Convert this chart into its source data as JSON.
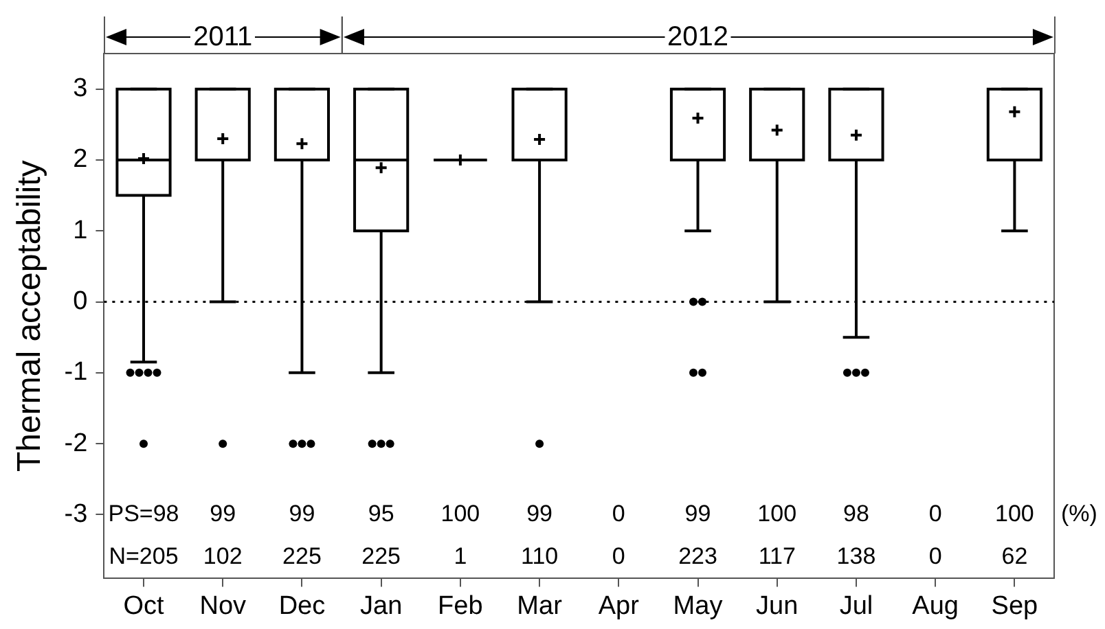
{
  "chart_data": {
    "type": "box",
    "ylabel": "Thermal acceptability",
    "color": "#000000",
    "grid": false,
    "categories": [
      "Oct",
      "Nov",
      "Dec",
      "Jan",
      "Feb",
      "Mar",
      "Apr",
      "May",
      "Jun",
      "Jul",
      "Aug",
      "Sep"
    ],
    "boxes": [
      {
        "low": -0.85,
        "q1": 1.5,
        "median": 2,
        "q3": 3,
        "high": 3,
        "mean": 2.02,
        "outliers": [
          -1,
          -1,
          -1,
          -1,
          -2
        ]
      },
      {
        "low": 0,
        "q1": 2,
        "median": 2,
        "q3": 3,
        "high": 3,
        "mean": 2.3,
        "outliers": [
          -2
        ]
      },
      {
        "low": -1,
        "q1": 2,
        "median": 2,
        "q3": 3,
        "high": 3,
        "mean": 2.23,
        "outliers": [
          -2,
          -2,
          -2
        ]
      },
      {
        "low": -1,
        "q1": 1,
        "median": 2,
        "q3": 3,
        "high": 3,
        "mean": 1.89,
        "outliers": [
          -2,
          -2,
          -2
        ]
      },
      {
        "low": 2,
        "q1": 2,
        "median": 2,
        "q3": 2,
        "high": 2,
        "mean": 2
      },
      {
        "low": 0,
        "q1": 2,
        "median": 2,
        "q3": 3,
        "high": 3,
        "mean": 2.29,
        "outliers": [
          -2
        ]
      },
      null,
      {
        "low": 1,
        "q1": 2,
        "median": 2,
        "q3": 3,
        "high": 3,
        "mean": 2.59,
        "outliers": [
          0,
          0,
          -1,
          -1
        ]
      },
      {
        "low": 0,
        "q1": 2,
        "median": 2,
        "q3": 3,
        "high": 3,
        "mean": 2.42
      },
      {
        "low": -0.5,
        "q1": 2,
        "median": 2,
        "q3": 3,
        "high": 3,
        "mean": 2.35,
        "outliers": [
          -1,
          -1,
          -1
        ]
      },
      null,
      {
        "low": 1,
        "q1": 2,
        "median": 2,
        "q3": 3,
        "high": 3,
        "mean": 2.68
      }
    ],
    "ylim": [
      -3.9,
      3.5
    ],
    "yticks": [
      -3,
      -2,
      -1,
      0,
      1,
      2,
      3
    ],
    "ref_lines": [
      {
        "axis": "y",
        "value": 0,
        "line_style": "dotted"
      }
    ],
    "annotations": [
      "2011",
      "2012",
      "PS=98",
      "99",
      "99",
      "95",
      "100",
      "99",
      "0",
      "99",
      "100",
      "98",
      "0",
      "100",
      "N=205",
      "102",
      "225",
      "225",
      "1",
      "110",
      "0",
      "223",
      "117",
      "138",
      "0",
      "62",
      "(%)"
    ]
  }
}
